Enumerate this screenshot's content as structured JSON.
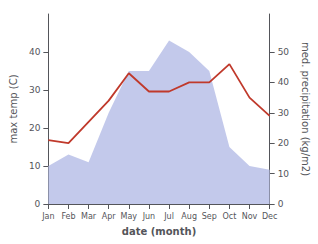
{
  "chart_data": {
    "type": "line",
    "xlabel": "date (month)",
    "ylabel": "max temp (C)",
    "y2label": "med. precipitation (kg/m2)",
    "categories": [
      "Jan",
      "Feb",
      "Mar",
      "Apr",
      "May",
      "Jun",
      "Jul",
      "Aug",
      "Sep",
      "Oct",
      "Nov",
      "Dec"
    ],
    "series": [
      {
        "type": "area",
        "color": "#b8c0e8",
        "values": [
          10,
          13,
          11,
          24,
          35,
          35,
          43,
          40,
          35,
          15,
          10,
          9
        ]
      },
      {
        "type": "line",
        "color": "#c0392b",
        "axis": "y2",
        "values": [
          21,
          20,
          27,
          34,
          43,
          37,
          37,
          40,
          40,
          46,
          35,
          29
        ]
      }
    ],
    "ylim": [
      0,
      50
    ],
    "yticks": [
      0,
      10,
      20,
      30,
      40
    ],
    "y2lim": [
      0,
      62.5
    ],
    "y2ticks": [
      0,
      10,
      20,
      30,
      40,
      50
    ],
    "grid": false
  }
}
